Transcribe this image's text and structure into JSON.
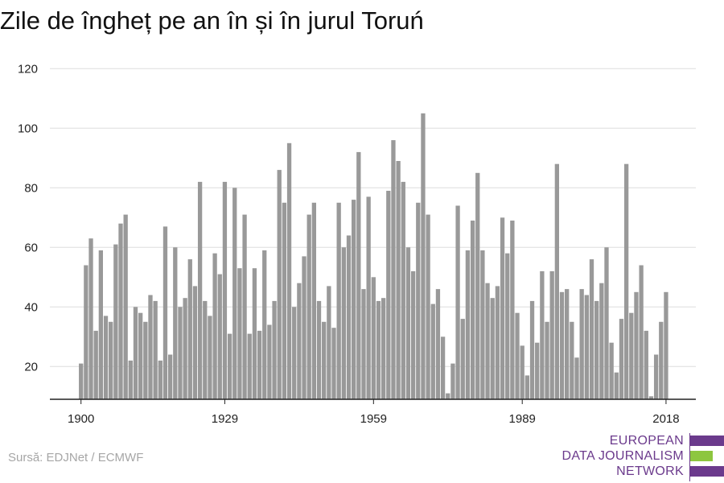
{
  "title": "Zile de îngheț pe an în și în jurul Toruń",
  "source": "Sursă: EDJNet / ECMWF",
  "logo": {
    "line1": "EUROPEAN",
    "line2": "DATA JOURNALISM",
    "line3": "NETWORK",
    "colors": {
      "purple": "#6b3a8c",
      "green": "#8dc63f"
    }
  },
  "colors": {
    "bar": "#999999",
    "grid": "#dddddd",
    "axis": "#222222"
  },
  "chart_data": {
    "type": "bar",
    "title": "Zile de îngheț pe an în și în jurul Toruń",
    "xlabel": "",
    "ylabel": "",
    "x_ticks": [
      "1900",
      "1929",
      "1959",
      "1989",
      "2018"
    ],
    "y_ticks": [
      20,
      40,
      60,
      80,
      100,
      120
    ],
    "ylim": [
      9,
      120
    ],
    "grid": true,
    "legend": "none",
    "x": [
      1900,
      1901,
      1902,
      1903,
      1904,
      1905,
      1906,
      1907,
      1908,
      1909,
      1910,
      1911,
      1912,
      1913,
      1914,
      1915,
      1916,
      1917,
      1918,
      1919,
      1920,
      1921,
      1922,
      1923,
      1924,
      1925,
      1926,
      1927,
      1928,
      1929,
      1930,
      1931,
      1932,
      1933,
      1934,
      1935,
      1936,
      1937,
      1938,
      1939,
      1940,
      1941,
      1942,
      1943,
      1944,
      1945,
      1946,
      1947,
      1948,
      1949,
      1950,
      1951,
      1952,
      1953,
      1954,
      1955,
      1956,
      1957,
      1958,
      1959,
      1960,
      1961,
      1962,
      1963,
      1964,
      1965,
      1966,
      1967,
      1968,
      1969,
      1970,
      1971,
      1972,
      1973,
      1974,
      1975,
      1976,
      1977,
      1978,
      1979,
      1980,
      1981,
      1982,
      1983,
      1984,
      1985,
      1986,
      1987,
      1988,
      1989,
      1990,
      1991,
      1992,
      1993,
      1994,
      1995,
      1996,
      1997,
      1998,
      1999,
      2000,
      2001,
      2002,
      2003,
      2004,
      2005,
      2006,
      2007,
      2008,
      2009,
      2010,
      2011,
      2012,
      2013,
      2014,
      2015,
      2016,
      2017,
      2018,
      2019
    ],
    "values": [
      21,
      54,
      63,
      32,
      59,
      37,
      35,
      61,
      68,
      71,
      22,
      40,
      38,
      35,
      44,
      42,
      22,
      67,
      24,
      60,
      40,
      43,
      56,
      47,
      82,
      42,
      37,
      58,
      51,
      82,
      31,
      80,
      53,
      71,
      31,
      53,
      32,
      59,
      34,
      42,
      86,
      75,
      95,
      40,
      48,
      57,
      71,
      75,
      42,
      35,
      47,
      33,
      75,
      60,
      64,
      76,
      92,
      46,
      77,
      50,
      42,
      43,
      79,
      96,
      89,
      82,
      60,
      52,
      75,
      105,
      71,
      41,
      46,
      30,
      11,
      21,
      74,
      36,
      59,
      69,
      85,
      59,
      48,
      43,
      47,
      70,
      58,
      69,
      38,
      27,
      17,
      42,
      28,
      52,
      35,
      52,
      88,
      45,
      46,
      35,
      23,
      46,
      44,
      56,
      42,
      48,
      60,
      28,
      18,
      36,
      88,
      38,
      45,
      54,
      32,
      10,
      24,
      35,
      45,
      null
    ]
  }
}
